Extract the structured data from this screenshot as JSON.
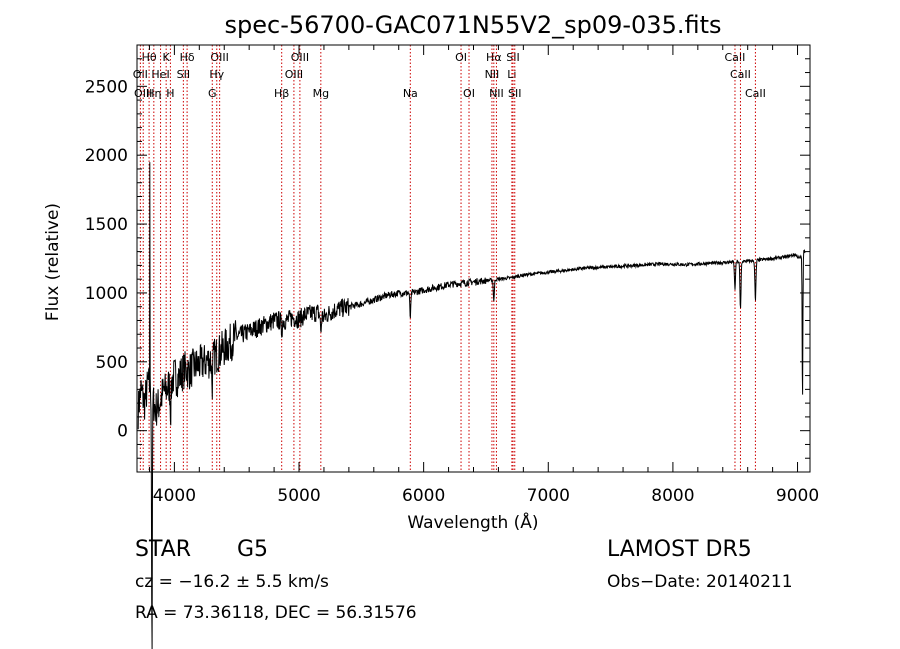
{
  "chart_data": {
    "type": "line",
    "title": "spec-56700-GAC071N55V2_sp09-035.fits",
    "xlabel": "Wavelength (Å)",
    "ylabel": "Flux (relative)",
    "xlim": [
      3700,
      9100
    ],
    "ylim": [
      -300,
      2800
    ],
    "xticks": [
      4000,
      5000,
      6000,
      7000,
      8000,
      9000
    ],
    "yticks": [
      0,
      500,
      1000,
      1500,
      2000,
      2500
    ],
    "grid": false,
    "line_color": "#000000",
    "marker_color": "#cc0000",
    "series": [
      {
        "x": [
          3710,
          3730,
          3760,
          3790,
          3820,
          3850,
          3880,
          3910,
          3940,
          3970,
          4000,
          4030,
          4060,
          4090,
          4120,
          4150,
          4200,
          4250,
          4300,
          4350,
          4400,
          4450,
          4500,
          4550,
          4600,
          4650,
          4700,
          4750,
          4800,
          4850,
          4900,
          4950,
          5000,
          5050,
          5100,
          5150,
          5200,
          5250,
          5300,
          5400,
          5500,
          5600,
          5700,
          5800,
          5900,
          6000,
          6100,
          6200,
          6300,
          6400,
          6500,
          6600,
          6700,
          6800,
          6900,
          7000,
          7100,
          7200,
          7300,
          7400,
          7500,
          7600,
          7700,
          7800,
          7900,
          8000,
          8100,
          8200,
          8300,
          8400,
          8500,
          8600,
          8700,
          8800,
          8900,
          8980,
          9020,
          9050
        ],
        "y": [
          150,
          300,
          200,
          350,
          250,
          150,
          200,
          280,
          300,
          350,
          400,
          380,
          420,
          450,
          430,
          460,
          480,
          500,
          520,
          560,
          600,
          640,
          680,
          700,
          720,
          740,
          760,
          780,
          800,
          800,
          800,
          820,
          810,
          840,
          850,
          860,
          820,
          860,
          880,
          900,
          920,
          950,
          980,
          1000,
          1000,
          1020,
          1040,
          1060,
          1070,
          1080,
          1090,
          1100,
          1110,
          1130,
          1140,
          1150,
          1160,
          1170,
          1180,
          1185,
          1190,
          1195,
          1200,
          1205,
          1210,
          1210,
          1205,
          1210,
          1215,
          1220,
          1225,
          1230,
          1240,
          1250,
          1260,
          1280,
          1250,
          1300
        ]
      }
    ],
    "absorption_dips": [
      {
        "x": 3820,
        "depth": 1900
      },
      {
        "x": 3970,
        "depth": 200
      },
      {
        "x": 4303,
        "depth": 180
      },
      {
        "x": 4861,
        "depth": 80
      },
      {
        "x": 5175,
        "depth": 120
      },
      {
        "x": 5893,
        "depth": 180
      },
      {
        "x": 6563,
        "depth": 150
      },
      {
        "x": 8498,
        "depth": 200
      },
      {
        "x": 8542,
        "depth": 350
      },
      {
        "x": 8662,
        "depth": 300
      },
      {
        "x": 9040,
        "depth": 1100
      }
    ],
    "line_markers": [
      {
        "label": "Hθ",
        "x": 3797,
        "row": 0
      },
      {
        "label": "K",
        "x": 3934,
        "row": 0
      },
      {
        "label": "Hδ",
        "x": 4102,
        "row": 0
      },
      {
        "label": "OIII",
        "x": 4363,
        "row": 0
      },
      {
        "label": "OIII",
        "x": 5007,
        "row": 0
      },
      {
        "label": "OI",
        "x": 6300,
        "row": 0
      },
      {
        "label": "Hα",
        "x": 6563,
        "row": 0
      },
      {
        "label": "SII",
        "x": 6717,
        "row": 0
      },
      {
        "label": "CaII",
        "x": 8498,
        "row": 0
      },
      {
        "label": "OII",
        "x": 3727,
        "row": 1
      },
      {
        "label": "HeI",
        "x": 3889,
        "row": 1
      },
      {
        "label": "SII",
        "x": 4072,
        "row": 1
      },
      {
        "label": "Hγ",
        "x": 4340,
        "row": 1
      },
      {
        "label": "OIII",
        "x": 4959,
        "row": 1
      },
      {
        "label": "NII",
        "x": 6548,
        "row": 1
      },
      {
        "label": "Li",
        "x": 6708,
        "row": 1
      },
      {
        "label": "CaII",
        "x": 8542,
        "row": 1
      },
      {
        "label": "OIII",
        "x": 3750,
        "row": 2
      },
      {
        "label": "Hη",
        "x": 3835,
        "row": 2
      },
      {
        "label": "H",
        "x": 3968,
        "row": 2
      },
      {
        "label": "G",
        "x": 4304,
        "row": 2
      },
      {
        "label": "Hβ",
        "x": 4861,
        "row": 2
      },
      {
        "label": "Mg",
        "x": 5175,
        "row": 2
      },
      {
        "label": "Na",
        "x": 5893,
        "row": 2
      },
      {
        "label": "OI",
        "x": 6364,
        "row": 2
      },
      {
        "label": "NII",
        "x": 6584,
        "row": 2
      },
      {
        "label": "SII",
        "x": 6731,
        "row": 2
      },
      {
        "label": "CaII",
        "x": 8662,
        "row": 2
      }
    ]
  },
  "info": {
    "object_class": "STAR",
    "subclass": "G5",
    "survey": "LAMOST DR5",
    "cz_text": "cz = −16.2 ± 5.5 km/s",
    "obs_date": "Obs−Date: 20140211",
    "radec_text": "RA =  73.36118, DEC =  56.31576"
  }
}
